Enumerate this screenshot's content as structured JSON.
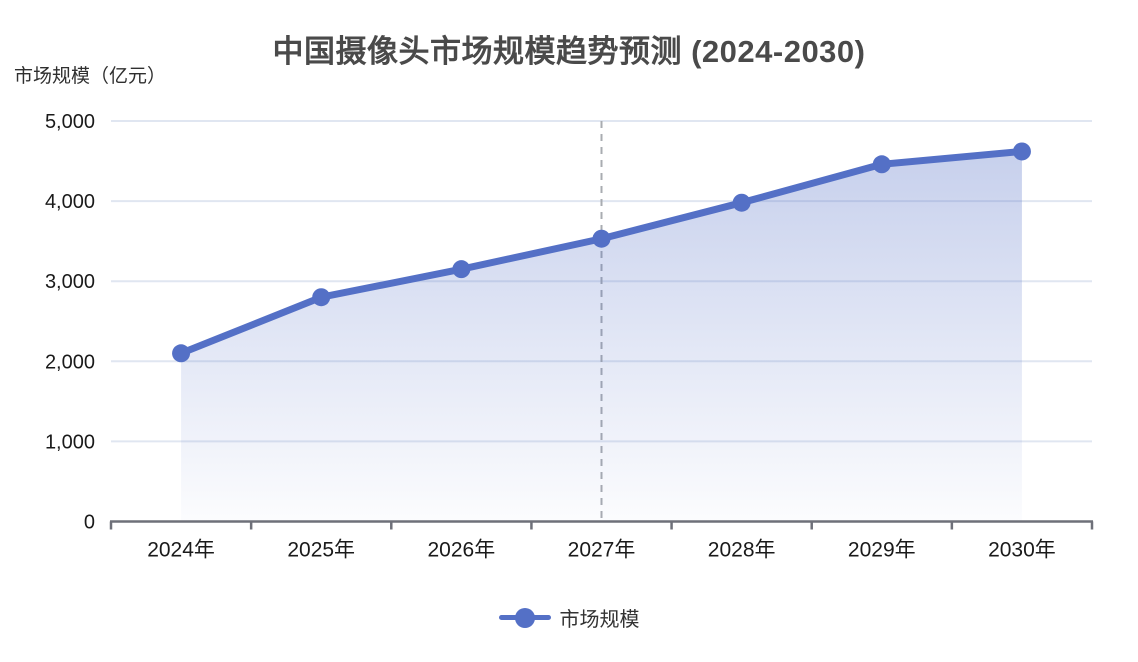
{
  "title": "中国摄像头市场规模趋势预测 (2024-2030)",
  "y_axis_name": "市场规模（亿元）",
  "chart_data": {
    "type": "area",
    "categories": [
      "2024年",
      "2025年",
      "2026年",
      "2027年",
      "2028年",
      "2029年",
      "2030年"
    ],
    "series": [
      {
        "name": "市场规模",
        "values": [
          2100,
          2800,
          3150,
          3530,
          3980,
          4460,
          4620
        ]
      }
    ],
    "title": "中国摄像头市场规模趋势预测 (2024-2030)",
    "xlabel": "",
    "ylabel": "市场规模（亿元）",
    "ylim": [
      0,
      5000
    ],
    "y_ticks": [
      0,
      1000,
      2000,
      3000,
      4000,
      5000
    ],
    "y_tick_labels": [
      "0",
      "1,000",
      "2,000",
      "3,000",
      "4,000",
      "5,000"
    ],
    "grid": true,
    "legend_position": "bottom",
    "annotations": [
      {
        "type": "vline",
        "at_category": "2027年",
        "style": "dashed"
      }
    ]
  },
  "legend": {
    "items": [
      {
        "label": "市场规模",
        "color": "#5470C6"
      }
    ]
  },
  "colors": {
    "line": "#5470C6",
    "point": "#5470C6",
    "area_top": "rgba(84,112,198,0.33)",
    "area_bottom": "rgba(84,112,198,0.02)",
    "gridline": "#E0E6F1",
    "axis_line": "#6E7079",
    "dashed_line": "#A9ACB1",
    "tick_label": "#1a1a1a",
    "title_text": "#4a4a4a"
  }
}
